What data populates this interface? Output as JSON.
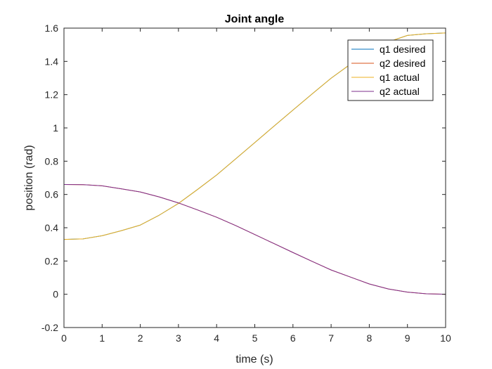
{
  "chart_data": {
    "type": "line",
    "title": "Joint angle",
    "xlabel": "time (s)",
    "ylabel": "position (rad)",
    "xlim": [
      0,
      10
    ],
    "ylim": [
      -0.2,
      1.6
    ],
    "xticks": [
      "0",
      "1",
      "2",
      "3",
      "4",
      "5",
      "6",
      "7",
      "8",
      "9",
      "10"
    ],
    "yticks": [
      "-0.2",
      "0",
      "0.2",
      "0.4",
      "0.6",
      "0.8",
      "1",
      "1.2",
      "1.4",
      "1.6"
    ],
    "grid": false,
    "legend_position": "top-right",
    "x": [
      0,
      0.5,
      1,
      1.5,
      2,
      2.5,
      3,
      3.5,
      4,
      4.5,
      5,
      5.5,
      6,
      6.5,
      7,
      7.5,
      8,
      8.5,
      9,
      9.5,
      10
    ],
    "series": [
      {
        "name": "q1 desired",
        "color": "#0072BD",
        "values": [
          0.33,
          0.333,
          0.352,
          0.382,
          0.416,
          0.476,
          0.546,
          0.63,
          0.717,
          0.814,
          0.912,
          1.01,
          1.107,
          1.204,
          1.299,
          1.382,
          1.462,
          1.517,
          1.556,
          1.566,
          1.571
        ]
      },
      {
        "name": "q2 desired",
        "color": "#D95319",
        "values": [
          0.66,
          0.659,
          0.652,
          0.634,
          0.615,
          0.585,
          0.549,
          0.507,
          0.463,
          0.413,
          0.359,
          0.305,
          0.251,
          0.198,
          0.146,
          0.104,
          0.062,
          0.032,
          0.013,
          0.003,
          0.0
        ]
      },
      {
        "name": "q1 actual",
        "color": "#EDB120",
        "values": [
          0.33,
          0.333,
          0.352,
          0.382,
          0.416,
          0.476,
          0.546,
          0.63,
          0.717,
          0.814,
          0.912,
          1.01,
          1.107,
          1.204,
          1.299,
          1.382,
          1.462,
          1.517,
          1.556,
          1.566,
          1.571
        ]
      },
      {
        "name": "q2 actual",
        "color": "#7E2F8E",
        "values": [
          0.66,
          0.659,
          0.652,
          0.634,
          0.615,
          0.585,
          0.549,
          0.507,
          0.463,
          0.413,
          0.359,
          0.305,
          0.251,
          0.198,
          0.146,
          0.104,
          0.062,
          0.032,
          0.013,
          0.003,
          0.0
        ]
      }
    ]
  }
}
